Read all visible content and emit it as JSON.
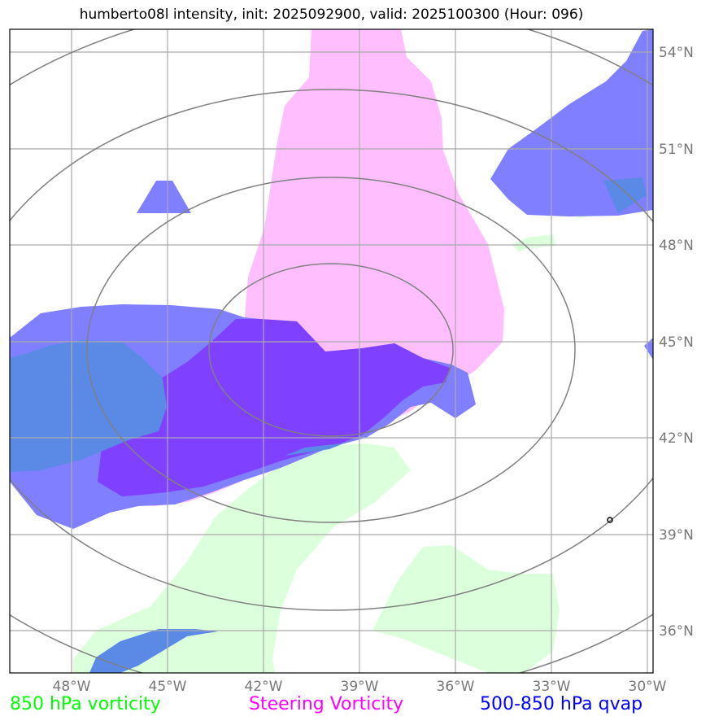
{
  "title": "humberto08l intensity, init: 2025092900, valid: 2025100300 (Hour: 096)",
  "map": {
    "lon_ticks": [
      "48°W",
      "45°W",
      "42°W",
      "39°W",
      "36°W",
      "33°W",
      "30°W"
    ],
    "lat_ticks": [
      "54°N",
      "51°N",
      "48°N",
      "45°N",
      "42°N",
      "39°N",
      "36°N"
    ],
    "grid_color": "#aaaaaa",
    "contour_color": "#808080"
  },
  "fields": {
    "vorticity_850": {
      "color": "#dcffdc"
    },
    "steering_vorticity": {
      "color": "#ffbfff"
    },
    "qvap_500_850": {
      "color": "#7f7fff",
      "overlap_color": "#8040ff",
      "overlap_vort_color": "#5a8ae6"
    }
  },
  "legend": {
    "vort_850": {
      "label": "850 hPa vorticity",
      "color": "#00ff00"
    },
    "steering": {
      "label": "Steering Vorticity",
      "color": "#ff00ff"
    },
    "qvap": {
      "label": "500-850 hPa qvap",
      "color": "#0000ff"
    }
  }
}
